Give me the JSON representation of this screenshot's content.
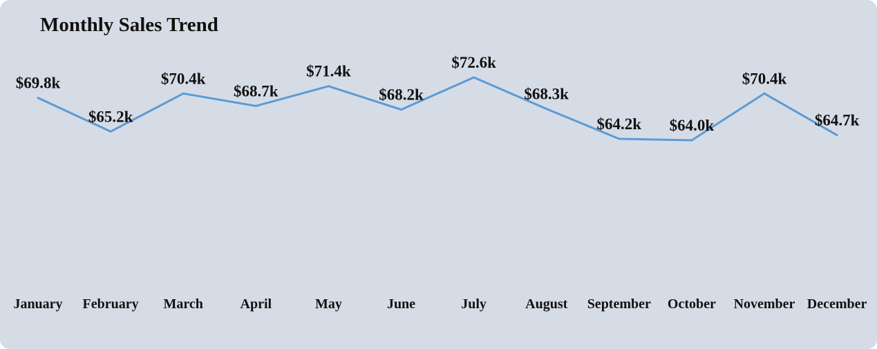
{
  "colors": {
    "background": "#d6dce6",
    "line": "#5b9bd5",
    "text": "#111111"
  },
  "chart_data": {
    "type": "line",
    "title": "Monthly Sales Trend",
    "xlabel": "",
    "ylabel": "",
    "categories": [
      "January",
      "February",
      "March",
      "April",
      "May",
      "June",
      "July",
      "August",
      "September",
      "October",
      "November",
      "December"
    ],
    "series": [
      {
        "values": [
          69.8,
          65.2,
          70.4,
          68.7,
          71.4,
          68.2,
          72.6,
          68.3,
          64.2,
          64.0,
          70.4,
          64.7
        ],
        "labels": [
          "$69.8k",
          "$65.2k",
          "$70.4k",
          "$68.7k",
          "$71.4k",
          "$68.2k",
          "$72.6k",
          "$68.3k",
          "$64.2k",
          "$64.0k",
          "$70.4k",
          "$64.7k"
        ]
      }
    ],
    "ylim": [
      55,
      75
    ],
    "grid": false,
    "legend": "none",
    "axis_lines": false
  }
}
